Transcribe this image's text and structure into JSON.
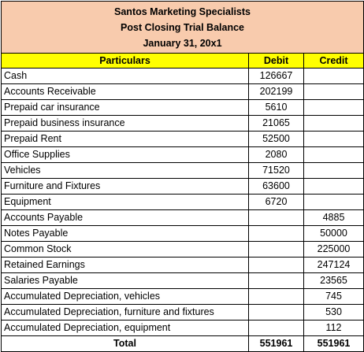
{
  "header": {
    "company": "Santos Marketing Specialists",
    "report": "Post Closing Trial Balance",
    "date": "January 31, 20x1"
  },
  "columns": {
    "particulars": "Particulars",
    "debit": "Debit",
    "credit": "Credit"
  },
  "rows": [
    {
      "particulars": "Cash",
      "debit": "126667",
      "credit": ""
    },
    {
      "particulars": "Accounts Receivable",
      "debit": "202199",
      "credit": ""
    },
    {
      "particulars": "Prepaid car insurance",
      "debit": "5610",
      "credit": ""
    },
    {
      "particulars": "Prepaid business insurance",
      "debit": "21065",
      "credit": ""
    },
    {
      "particulars": "Prepaid Rent",
      "debit": "52500",
      "credit": ""
    },
    {
      "particulars": "Office Supplies",
      "debit": "2080",
      "credit": ""
    },
    {
      "particulars": "Vehicles",
      "debit": "71520",
      "credit": ""
    },
    {
      "particulars": "Furniture and Fixtures",
      "debit": "63600",
      "credit": ""
    },
    {
      "particulars": "Equipment",
      "debit": "6720",
      "credit": ""
    },
    {
      "particulars": "Accounts Payable",
      "debit": "",
      "credit": "4885"
    },
    {
      "particulars": "Notes Payable",
      "debit": "",
      "credit": "50000"
    },
    {
      "particulars": "Common Stock",
      "debit": "",
      "credit": "225000"
    },
    {
      "particulars": "Retained Earnings",
      "debit": "",
      "credit": "247124"
    },
    {
      "particulars": "Salaries Payable",
      "debit": "",
      "credit": "23565"
    },
    {
      "particulars": "Accumulated Depreciation, vehicles",
      "debit": "",
      "credit": "745"
    },
    {
      "particulars": "Accumulated Depreciation, furniture and fixtures",
      "debit": "",
      "credit": "530"
    },
    {
      "particulars": "Accumulated Depreciation, equipment",
      "debit": "",
      "credit": "112"
    }
  ],
  "total": {
    "label": "Total",
    "debit": "551961",
    "credit": "551961"
  },
  "colors": {
    "title_background": "#f8cbad",
    "header_background": "#ffff00",
    "border": "#000000"
  }
}
